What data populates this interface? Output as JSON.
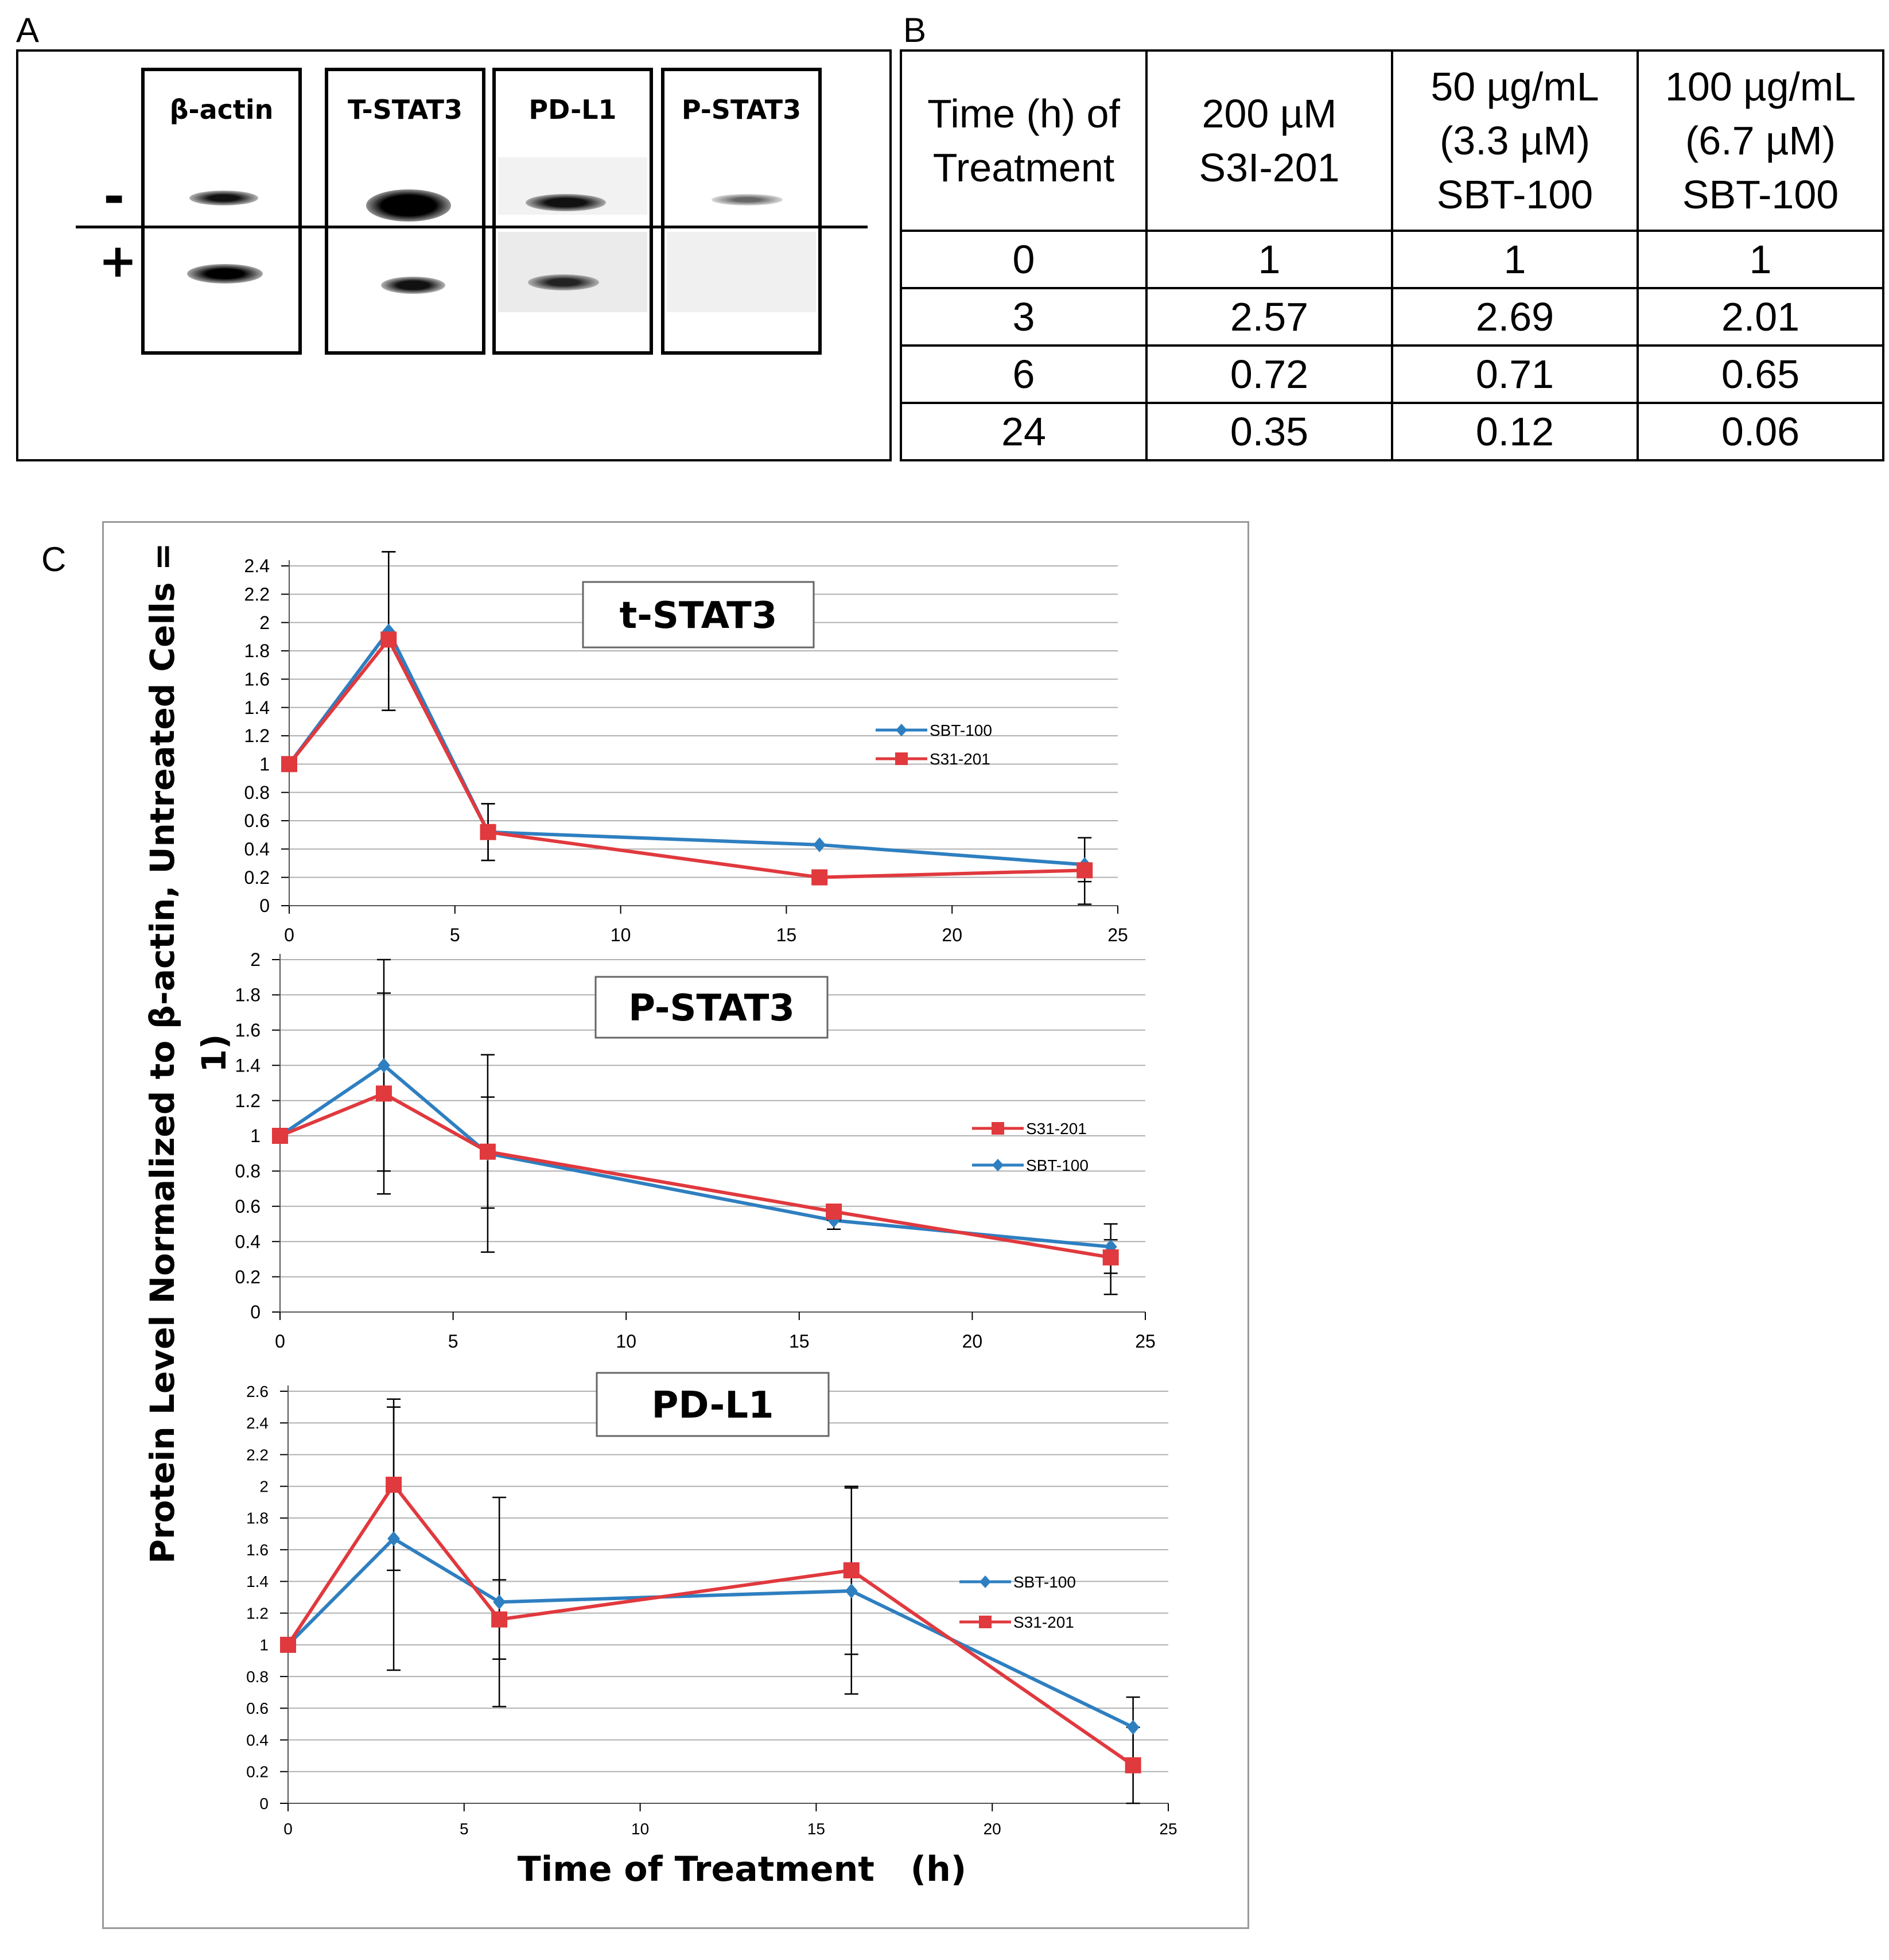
{
  "panel_labels": {
    "a": "A",
    "b": "B",
    "c": "C"
  },
  "panel_a": {
    "row_labels": {
      "minus": "-",
      "plus": "+"
    },
    "blots": [
      {
        "label": "β-actin"
      },
      {
        "label": "T-STAT3"
      },
      {
        "label": "PD-L1"
      },
      {
        "label": "P-STAT3"
      }
    ]
  },
  "panel_b": {
    "header": [
      "Time (h) of\nTreatment",
      "200 µM\nS3I-201",
      "50 µg/mL\n(3.3 µM)\nSBT-100",
      "100 µg/mL\n(6.7 µM)\nSBT-100"
    ],
    "rows": [
      [
        "0",
        "1",
        "1",
        "1"
      ],
      [
        "3",
        "2.57",
        "2.69",
        "2.01"
      ],
      [
        "6",
        "0.72",
        "0.71",
        "0.65"
      ],
      [
        "24",
        "0.35",
        "0.12",
        "0.06"
      ]
    ]
  },
  "panel_c": {
    "y_axis_title": "Protein Level Normalized to β-actin, Untreated Cells = 1)",
    "x_axis_title": "Time of Treatment   (h)"
  },
  "colors": {
    "sbt": "#2e7fc0",
    "s31": "#e0393e",
    "grid": "#b0b0b0",
    "error": "#000000"
  },
  "chart_data": [
    {
      "type": "line",
      "title": "t-STAT3",
      "x": [
        0,
        3,
        6,
        16,
        24
      ],
      "xlim": [
        0,
        25
      ],
      "xticks": [
        0,
        5,
        10,
        15,
        20,
        25
      ],
      "ylim": [
        0,
        2.4
      ],
      "yticks": [
        0,
        0.2,
        0.4,
        0.6,
        0.8,
        1,
        1.2,
        1.4,
        1.6,
        1.8,
        2,
        2.2,
        2.4
      ],
      "legend": [
        "SBT-100",
        "S31-201"
      ],
      "series": [
        {
          "name": "SBT-100",
          "values": [
            1,
            1.94,
            0.52,
            0.43,
            0.29
          ],
          "marker": "diamond",
          "error": [
            [
              1,
              1
            ],
            [
              1.38,
              2.5
            ],
            [
              0.32,
              0.72
            ],
            [
              0.43,
              0.43
            ],
            [
              0.01,
              0.48
            ]
          ]
        },
        {
          "name": "S31-201",
          "values": [
            1,
            1.88,
            0.52,
            0.2,
            0.25
          ],
          "marker": "square",
          "error": [
            [
              1,
              1
            ],
            [
              1.38,
              2.5
            ],
            [
              0.32,
              0.72
            ],
            [
              0.2,
              0.2
            ],
            [
              0.17,
              0.3
            ]
          ]
        }
      ]
    },
    {
      "type": "line",
      "title": "P-STAT3",
      "x": [
        0,
        3,
        6,
        16,
        24
      ],
      "xlim": [
        0,
        25
      ],
      "xticks": [
        0,
        5,
        10,
        15,
        20,
        25
      ],
      "ylim": [
        0,
        2
      ],
      "yticks": [
        0,
        0.2,
        0.4,
        0.6,
        0.8,
        1,
        1.2,
        1.4,
        1.6,
        1.8,
        2
      ],
      "legend": [
        "S31-201",
        "SBT-100"
      ],
      "series": [
        {
          "name": "SBT-100",
          "values": [
            1,
            1.4,
            0.9,
            0.52,
            0.37
          ],
          "marker": "diamond",
          "error": [
            [
              1,
              1
            ],
            [
              0.8,
              2.0
            ],
            [
              0.34,
              1.46
            ],
            [
              0.47,
              0.57
            ],
            [
              0.22,
              0.5
            ]
          ]
        },
        {
          "name": "S31-201",
          "values": [
            1,
            1.24,
            0.91,
            0.57,
            0.31
          ],
          "marker": "square",
          "error": [
            [
              1,
              1
            ],
            [
              0.67,
              1.81
            ],
            [
              0.59,
              1.22
            ],
            [
              0.52,
              0.6
            ],
            [
              0.1,
              0.41
            ]
          ]
        }
      ]
    },
    {
      "type": "line",
      "title": "PD-L1",
      "x": [
        0,
        3,
        6,
        16,
        24
      ],
      "xlim": [
        0,
        25
      ],
      "xticks": [
        0,
        5,
        10,
        15,
        20,
        25
      ],
      "ylim": [
        0,
        2.6
      ],
      "yticks": [
        0,
        0.2,
        0.4,
        0.6,
        0.8,
        1,
        1.2,
        1.4,
        1.6,
        1.8,
        2,
        2.2,
        2.4,
        2.6
      ],
      "legend": [
        "SBT-100",
        "S31-201"
      ],
      "series": [
        {
          "name": "SBT-100",
          "values": [
            1,
            1.67,
            1.27,
            1.34,
            0.48
          ],
          "marker": "diamond",
          "error": [
            [
              1,
              1
            ],
            [
              0.84,
              2.5
            ],
            [
              0.61,
              1.93
            ],
            [
              0.69,
              1.99
            ],
            [
              0.28,
              0.67
            ]
          ]
        },
        {
          "name": "S31-201",
          "values": [
            1,
            2.01,
            1.16,
            1.47,
            0.24
          ],
          "marker": "square",
          "error": [
            [
              1,
              1
            ],
            [
              1.47,
              2.55
            ],
            [
              0.91,
              1.41
            ],
            [
              0.94,
              2.0
            ],
            [
              0,
              0.48
            ]
          ]
        }
      ]
    }
  ]
}
